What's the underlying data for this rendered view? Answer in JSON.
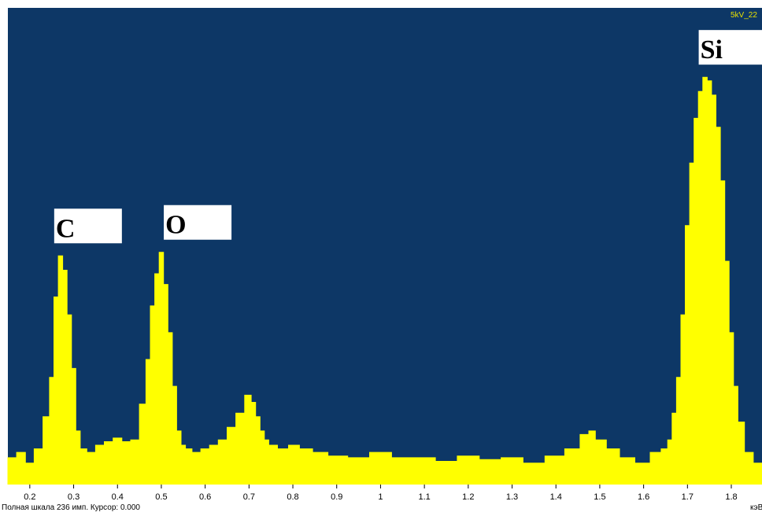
{
  "window": {
    "corner_label": "5kV_22"
  },
  "status_bar": {
    "text": "Полная шкала 236 имп. Курсор: 0.000",
    "unit": "кэВ"
  },
  "colors": {
    "background": "#0d3766",
    "spectrum": "#ffff00",
    "label_box": "#ffffff",
    "axis_strip": "#ffffff"
  },
  "chart_data": {
    "type": "area",
    "title": "",
    "xlabel": "кэВ",
    "ylabel": "",
    "xlim": [
      0.15,
      1.87
    ],
    "ylim": [
      0,
      236
    ],
    "grid": false,
    "x_ticks": [
      0.2,
      0.3,
      0.4,
      0.5,
      0.6,
      0.7,
      0.8,
      0.9,
      1,
      1.1,
      1.2,
      1.3,
      1.4,
      1.5,
      1.6,
      1.7,
      1.8
    ],
    "series": [
      {
        "x": [
          0.16,
          0.18,
          0.2,
          0.22,
          0.24,
          0.25,
          0.26,
          0.27,
          0.28,
          0.29,
          0.3,
          0.31,
          0.32,
          0.34,
          0.36,
          0.38,
          0.4,
          0.42,
          0.44,
          0.46,
          0.47,
          0.48,
          0.49,
          0.5,
          0.51,
          0.52,
          0.53,
          0.54,
          0.55,
          0.56,
          0.58,
          0.6,
          0.62,
          0.64,
          0.66,
          0.68,
          0.7,
          0.71,
          0.72,
          0.73,
          0.74,
          0.75,
          0.78,
          0.8,
          0.83,
          0.86,
          0.9,
          0.95,
          1,
          1.05,
          1.1,
          1.15,
          1.2,
          1.25,
          1.3,
          1.35,
          1.4,
          1.44,
          1.47,
          1.48,
          1.5,
          1.53,
          1.56,
          1.6,
          1.63,
          1.65,
          1.66,
          1.67,
          1.68,
          1.69,
          1.7,
          1.71,
          1.72,
          1.73,
          1.74,
          1.75,
          1.76,
          1.77,
          1.78,
          1.79,
          1.8,
          1.81,
          1.82,
          1.84,
          1.86
        ],
        "values": [
          15,
          18,
          12,
          20,
          38,
          60,
          105,
          128,
          120,
          95,
          65,
          30,
          20,
          18,
          22,
          24,
          26,
          24,
          25,
          45,
          70,
          100,
          118,
          130,
          112,
          85,
          55,
          30,
          22,
          20,
          18,
          20,
          22,
          25,
          32,
          40,
          50,
          46,
          38,
          30,
          25,
          22,
          20,
          22,
          20,
          18,
          16,
          15,
          18,
          15,
          15,
          13,
          16,
          14,
          15,
          12,
          16,
          20,
          28,
          30,
          25,
          20,
          15,
          12,
          18,
          20,
          25,
          40,
          60,
          95,
          145,
          180,
          205,
          220,
          228,
          226,
          218,
          200,
          170,
          125,
          85,
          55,
          35,
          18,
          12
        ]
      }
    ],
    "annotations": [
      {
        "text": "C",
        "x": 0.27
      },
      {
        "text": "O",
        "x": 0.52
      },
      {
        "text": "Si",
        "x": 1.74
      }
    ]
  }
}
